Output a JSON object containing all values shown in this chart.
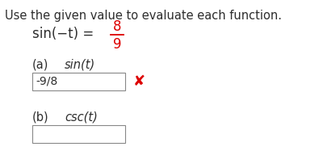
{
  "title": "Use the given value to evaluate each function.",
  "title_color": "#2d2d2d",
  "title_fontsize": 10.5,
  "given_text": "sin(−t) =",
  "given_numerator": "8",
  "given_denominator": "9",
  "given_color": "#dd0000",
  "given_text_color": "#2d2d2d",
  "given_fontsize": 12,
  "part_a_label": "(a)",
  "part_a_func": "sin(t)",
  "part_a_answer": "-9/8",
  "part_b_label": "(b)",
  "part_b_func": "csc(t)",
  "part_b_answer": "",
  "background_color": "#ffffff",
  "text_color": "#2d2d2d",
  "box_edge_color": "#888888",
  "wrong_color": "#dd0000",
  "answer_fontsize": 10,
  "label_fontsize": 10.5,
  "fig_width": 4.0,
  "fig_height": 1.87,
  "dpi": 100
}
